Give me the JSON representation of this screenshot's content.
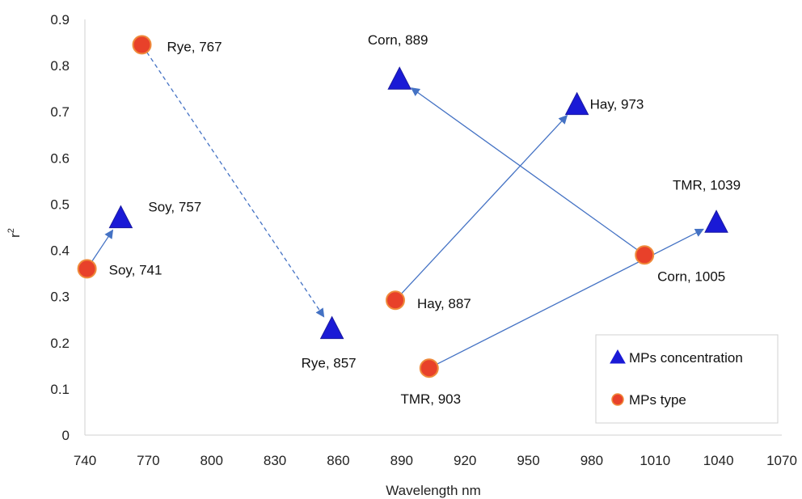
{
  "chart_data": {
    "type": "scatter",
    "xlabel": "Wavelength nm",
    "ylabel": "r2",
    "xlim": [
      740,
      1070
    ],
    "ylim": [
      0,
      0.9
    ],
    "x_ticks": [
      "740",
      "770",
      "800",
      "830",
      "860",
      "890",
      "920",
      "950",
      "980",
      "1010",
      "1040",
      "1070"
    ],
    "y_ticks": [
      "0",
      "0.1",
      "0.2",
      "0.3",
      "0.4",
      "0.5",
      "0.6",
      "0.7",
      "0.8",
      "0.9"
    ],
    "grid": false,
    "legend_position": "bottom-right",
    "series": [
      {
        "name": "MPs concentration",
        "marker": "triangle",
        "color": "#1a1ad6",
        "points": [
          {
            "x": 757,
            "y": 0.47,
            "label": "Soy, 757"
          },
          {
            "x": 857,
            "y": 0.23,
            "label": "Rye, 857"
          },
          {
            "x": 889,
            "y": 0.77,
            "label": "Corn, 889"
          },
          {
            "x": 973,
            "y": 0.715,
            "label": "Hay, 973"
          },
          {
            "x": 1039,
            "y": 0.46,
            "label": "TMR, 1039"
          }
        ]
      },
      {
        "name": "MPs type",
        "marker": "circle",
        "color": "#e8412a",
        "points": [
          {
            "x": 741,
            "y": 0.36,
            "label": "Soy, 741"
          },
          {
            "x": 767,
            "y": 0.845,
            "label": "Rye, 767"
          },
          {
            "x": 887,
            "y": 0.292,
            "label": "Hay, 887"
          },
          {
            "x": 903,
            "y": 0.145,
            "label": "TMR, 903"
          },
          {
            "x": 1005,
            "y": 0.39,
            "label": "Corn, 1005"
          }
        ]
      }
    ],
    "arrows": [
      {
        "from": [
          741,
          0.36
        ],
        "to": [
          757,
          0.47
        ],
        "style": "solid"
      },
      {
        "from": [
          767,
          0.845
        ],
        "to": [
          857,
          0.23
        ],
        "style": "dashed"
      },
      {
        "from": [
          887,
          0.292
        ],
        "to": [
          973,
          0.715
        ],
        "style": "solid"
      },
      {
        "from": [
          1005,
          0.39
        ],
        "to": [
          889,
          0.77
        ],
        "style": "solid"
      },
      {
        "from": [
          903,
          0.145
        ],
        "to": [
          1039,
          0.46
        ],
        "style": "solid"
      }
    ],
    "arrow_color": "#4472c4"
  }
}
